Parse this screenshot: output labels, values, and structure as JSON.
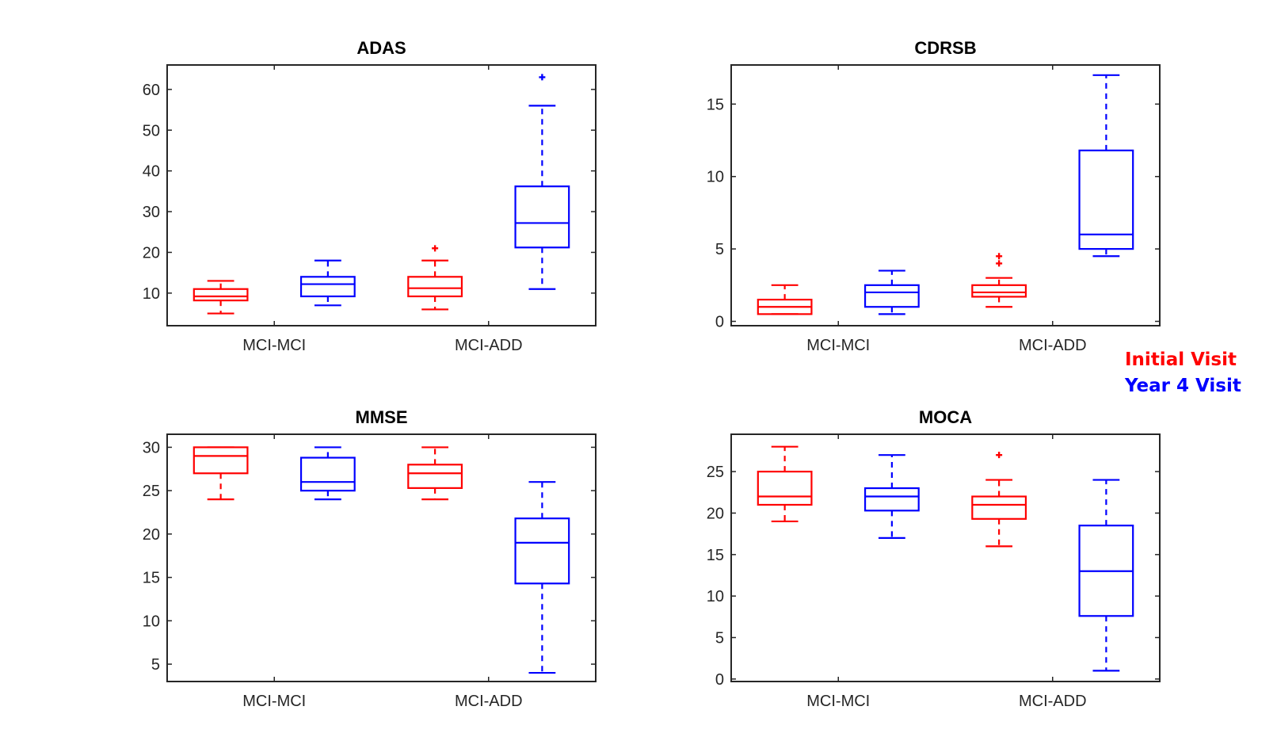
{
  "legend": [
    {
      "label": "Initial Visit",
      "color": "#ff0000"
    },
    {
      "label": "Year 4 Visit",
      "color": "#0000ff"
    }
  ],
  "chart_data": [
    {
      "type": "box",
      "title": "ADAS",
      "categories": [
        "MCI-MCI",
        "MCI-ADD"
      ],
      "ylim": [
        2,
        66
      ],
      "yticks": [
        10,
        20,
        30,
        40,
        50,
        60
      ],
      "series": [
        {
          "name": "Initial Visit",
          "color": "#ff0000",
          "boxes": [
            {
              "category": "MCI-MCI",
              "whisker_low": 5,
              "q1": 8.2,
              "median": 9.2,
              "q3": 11,
              "whisker_high": 13,
              "outliers": []
            },
            {
              "category": "MCI-ADD",
              "whisker_low": 6,
              "q1": 9.2,
              "median": 11.2,
              "q3": 14,
              "whisker_high": 18,
              "outliers": [
                21
              ]
            }
          ]
        },
        {
          "name": "Year 4 Visit",
          "color": "#0000ff",
          "boxes": [
            {
              "category": "MCI-MCI",
              "whisker_low": 7,
              "q1": 9.2,
              "median": 12.2,
              "q3": 14,
              "whisker_high": 18,
              "outliers": []
            },
            {
              "category": "MCI-ADD",
              "whisker_low": 11,
              "q1": 21.2,
              "median": 27.2,
              "q3": 36.2,
              "whisker_high": 56,
              "outliers": [
                63
              ]
            }
          ]
        }
      ]
    },
    {
      "type": "box",
      "title": "CDRSB",
      "categories": [
        "MCI-MCI",
        "MCI-ADD"
      ],
      "ylim": [
        -0.3,
        17.7
      ],
      "yticks": [
        0,
        5,
        10,
        15
      ],
      "series": [
        {
          "name": "Initial Visit",
          "color": "#ff0000",
          "boxes": [
            {
              "category": "MCI-MCI",
              "whisker_low": 0.5,
              "q1": 0.5,
              "median": 1.0,
              "q3": 1.5,
              "whisker_high": 2.5,
              "outliers": []
            },
            {
              "category": "MCI-ADD",
              "whisker_low": 1.0,
              "q1": 1.7,
              "median": 2.0,
              "q3": 2.5,
              "whisker_high": 3.0,
              "outliers": [
                4.0,
                4.5
              ]
            }
          ]
        },
        {
          "name": "Year 4 Visit",
          "color": "#0000ff",
          "boxes": [
            {
              "category": "MCI-MCI",
              "whisker_low": 0.5,
              "q1": 1.0,
              "median": 2.0,
              "q3": 2.5,
              "whisker_high": 3.5,
              "outliers": []
            },
            {
              "category": "MCI-ADD",
              "whisker_low": 4.5,
              "q1": 5.0,
              "median": 6.0,
              "q3": 11.8,
              "whisker_high": 17.0,
              "outliers": []
            }
          ]
        }
      ]
    },
    {
      "type": "box",
      "title": "MMSE",
      "categories": [
        "MCI-MCI",
        "MCI-ADD"
      ],
      "ylim": [
        3,
        31.5
      ],
      "yticks": [
        5,
        10,
        15,
        20,
        25,
        30
      ],
      "series": [
        {
          "name": "Initial Visit",
          "color": "#ff0000",
          "boxes": [
            {
              "category": "MCI-MCI",
              "whisker_low": 24,
              "q1": 27,
              "median": 29,
              "q3": 30,
              "whisker_high": 30,
              "outliers": []
            },
            {
              "category": "MCI-ADD",
              "whisker_low": 24,
              "q1": 25.3,
              "median": 27,
              "q3": 28,
              "whisker_high": 30,
              "outliers": []
            }
          ]
        },
        {
          "name": "Year 4 Visit",
          "color": "#0000ff",
          "boxes": [
            {
              "category": "MCI-MCI",
              "whisker_low": 24,
              "q1": 25,
              "median": 26,
              "q3": 28.8,
              "whisker_high": 30,
              "outliers": []
            },
            {
              "category": "MCI-ADD",
              "whisker_low": 4,
              "q1": 14.3,
              "median": 19,
              "q3": 21.8,
              "whisker_high": 26,
              "outliers": []
            }
          ]
        }
      ]
    },
    {
      "type": "box",
      "title": "MOCA",
      "categories": [
        "MCI-MCI",
        "MCI-ADD"
      ],
      "ylim": [
        -0.3,
        29.5
      ],
      "yticks": [
        0,
        5,
        10,
        15,
        20,
        25
      ],
      "series": [
        {
          "name": "Initial Visit",
          "color": "#ff0000",
          "boxes": [
            {
              "category": "MCI-MCI",
              "whisker_low": 19,
              "q1": 21,
              "median": 22,
              "q3": 25,
              "whisker_high": 28,
              "outliers": []
            },
            {
              "category": "MCI-ADD",
              "whisker_low": 16,
              "q1": 19.3,
              "median": 21,
              "q3": 22,
              "whisker_high": 24,
              "outliers": [
                27
              ]
            }
          ]
        },
        {
          "name": "Year 4 Visit",
          "color": "#0000ff",
          "boxes": [
            {
              "category": "MCI-MCI",
              "whisker_low": 17,
              "q1": 20.3,
              "median": 22,
              "q3": 23,
              "whisker_high": 27,
              "outliers": []
            },
            {
              "category": "MCI-ADD",
              "whisker_low": 1,
              "q1": 7.6,
              "median": 13,
              "q3": 18.5,
              "whisker_high": 24,
              "outliers": []
            }
          ]
        }
      ]
    }
  ]
}
